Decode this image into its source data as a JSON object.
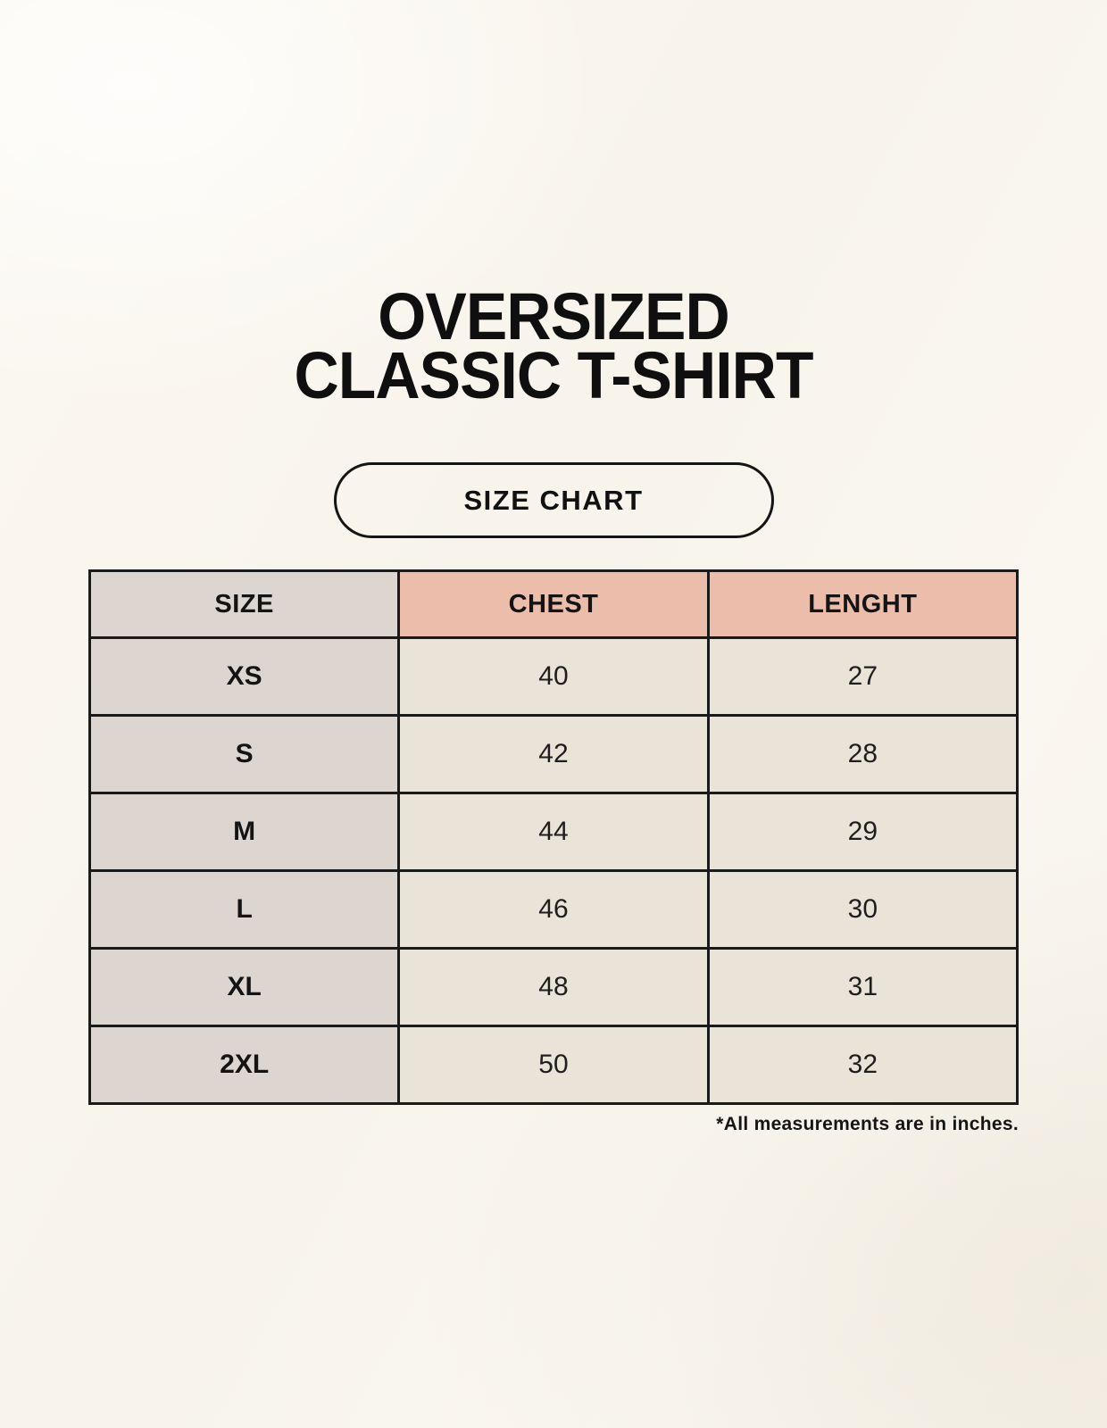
{
  "page": {
    "title_line1": "OVERSIZED",
    "title_line2": "CLASSIC T-SHIRT",
    "badge_label": "SIZE CHART",
    "footnote": "*All measurements are in inches."
  },
  "chart_data": {
    "type": "table",
    "title": "SIZE CHART",
    "columns": [
      "SIZE",
      "CHEST",
      "LENGHT"
    ],
    "rows": [
      [
        "XS",
        40,
        27
      ],
      [
        "S",
        42,
        28
      ],
      [
        "M",
        44,
        29
      ],
      [
        "L",
        46,
        30
      ],
      [
        "XL",
        48,
        31
      ],
      [
        "2XL",
        50,
        32
      ]
    ],
    "units": "inches"
  },
  "colors": {
    "page_bg": "#f9f6ef",
    "border_col": "#1a1a1a",
    "accent_bg": "#edbdab",
    "size_bg": "#ddd6d0",
    "cell_bg": "#eae3d8",
    "text_col": "#141414"
  }
}
